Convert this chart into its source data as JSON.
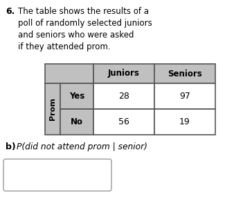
{
  "question_number": "6.",
  "question_text_line1": "The table shows the results of a",
  "question_text_line2": "poll of randomly selected juniors",
  "question_text_line3": "and seniors who were asked",
  "question_text_line4": "if they attended prom.",
  "col_headers": [
    "Juniors",
    "Seniors"
  ],
  "row_label_outer": "Prom",
  "row_labels": [
    "Yes",
    "No"
  ],
  "data": [
    [
      28,
      97
    ],
    [
      56,
      19
    ]
  ],
  "part_b_label": "b)",
  "part_b_text": "P(did not attend prom | senior)",
  "header_bg": "#c0c0c0",
  "row_header_bg": "#c0c0c0",
  "cell_bg": "#ffffff",
  "border_color": "#555555",
  "text_color": "#000000",
  "answer_box_bg": "#ffffff",
  "answer_box_border": "#aaaaaa",
  "fig_w": 3.25,
  "fig_h": 3.11,
  "dpi": 100
}
